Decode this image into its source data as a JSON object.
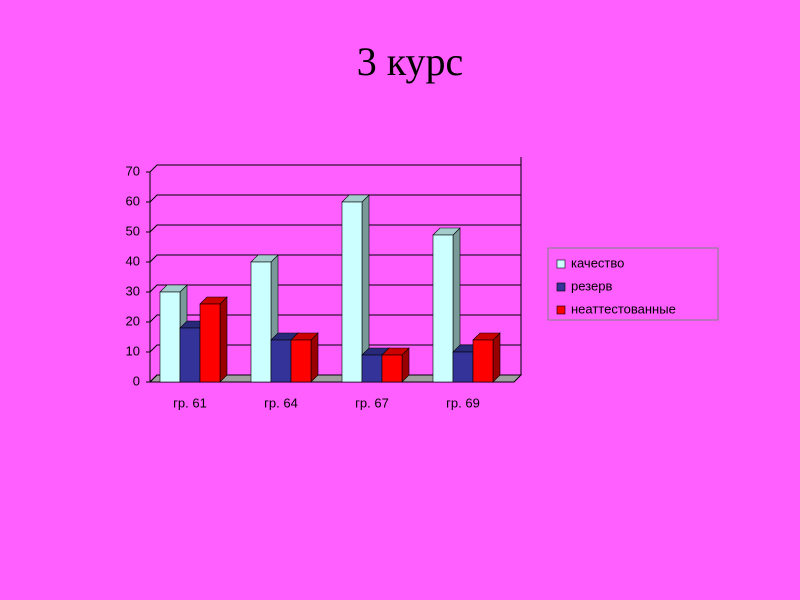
{
  "chart_data": {
    "type": "bar3d",
    "title": "3 курс",
    "categories": [
      "гр. 61",
      "гр. 64",
      "гр. 67",
      "гр. 69"
    ],
    "series": [
      {
        "name": "качество",
        "color": "#ccffff",
        "values": [
          30,
          40,
          60,
          49
        ]
      },
      {
        "name": "резерв",
        "color": "#333399",
        "values": [
          18,
          14,
          9,
          10
        ]
      },
      {
        "name": "неаттестованные",
        "color": "#ff0000",
        "values": [
          26,
          14,
          9,
          14
        ]
      }
    ],
    "ylim": [
      0,
      70
    ],
    "yticks": [
      0,
      10,
      20,
      30,
      40,
      50,
      60,
      70
    ],
    "grid": true,
    "legend": "right"
  }
}
